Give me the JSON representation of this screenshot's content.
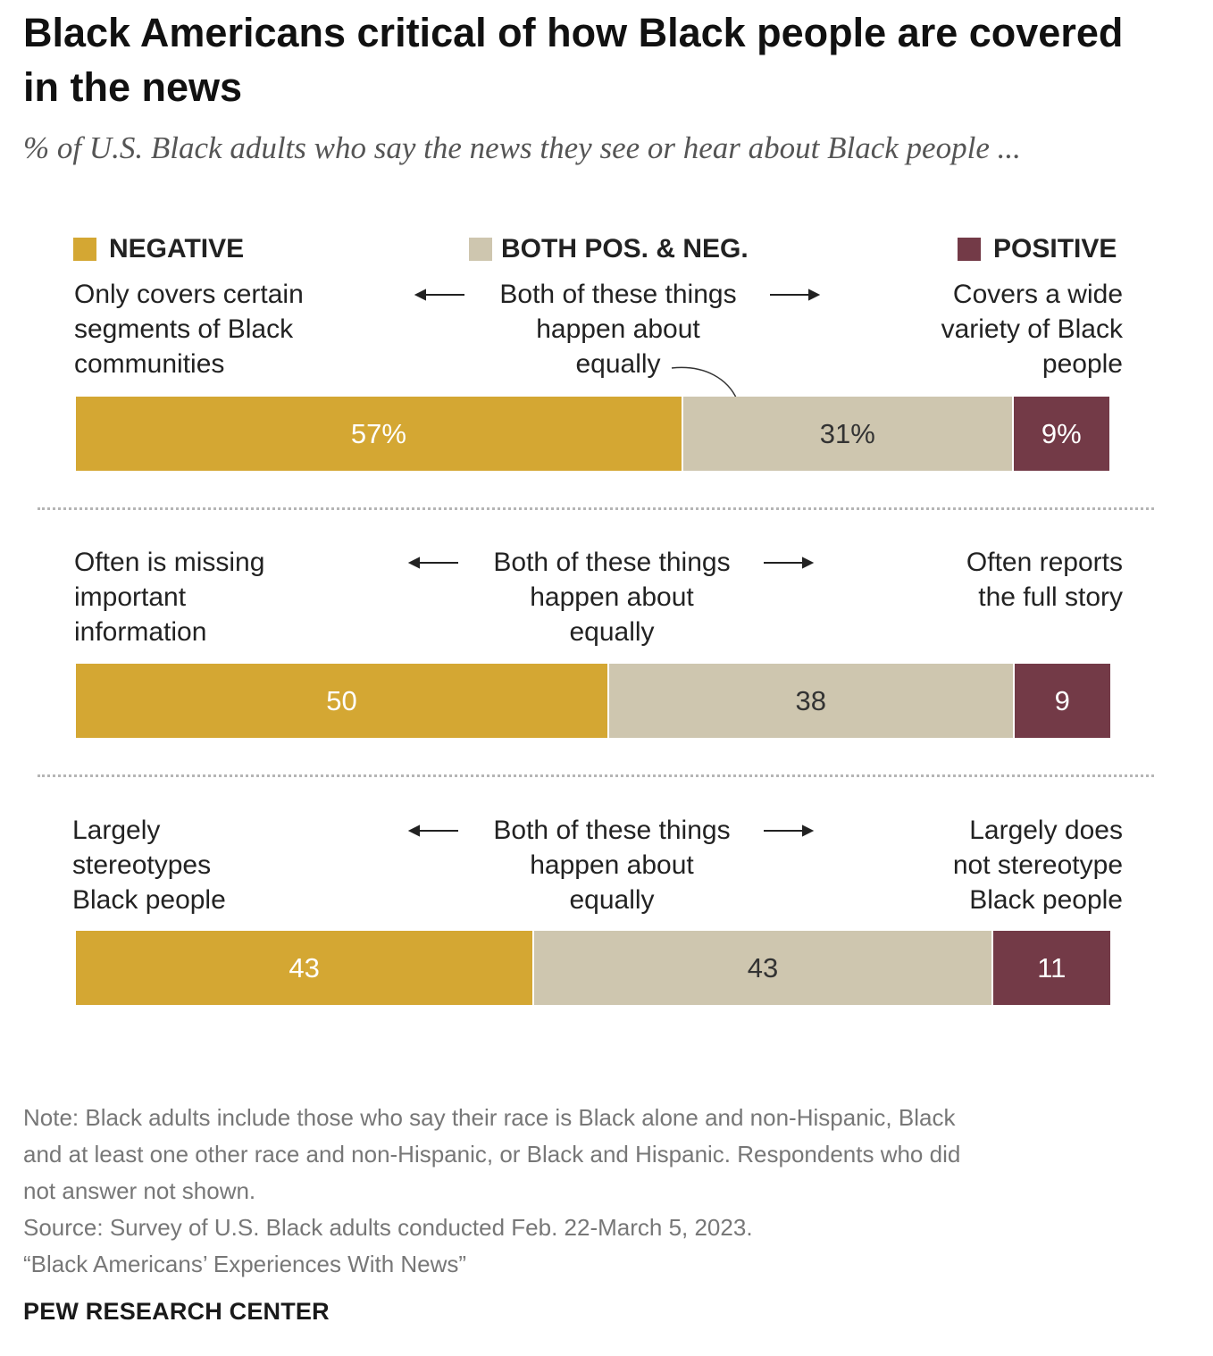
{
  "chart_data": {
    "type": "bar",
    "orientation": "horizontal",
    "stacked": true,
    "title": "Black Americans critical of how Black people are covered in the news",
    "subtitle": "% of U.S. Black adults who say the news they see or hear about Black people ...",
    "legend": [
      {
        "key": "negative",
        "label": "NEGATIVE",
        "color": "#d4a733"
      },
      {
        "key": "both",
        "label": "BOTH POS. & NEG.",
        "color": "#cec6af"
      },
      {
        "key": "positive",
        "label": "POSITIVE",
        "color": "#733a47"
      }
    ],
    "legend_placement": "top",
    "rows": [
      {
        "negative_label": "Only covers certain segments of Black communities",
        "both_label": "Both of these things happen about equally",
        "positive_label": "Covers a wide variety of Black people",
        "values": {
          "negative": 57,
          "both": 31,
          "positive": 9
        },
        "value_labels": {
          "negative": "57%",
          "both": "31%",
          "positive": "9%"
        }
      },
      {
        "negative_label": "Often is missing important information",
        "both_label": "Both of these things happen about equally",
        "positive_label": "Often reports the full story",
        "values": {
          "negative": 50,
          "both": 38,
          "positive": 9
        },
        "value_labels": {
          "negative": "50",
          "both": "38",
          "positive": "9"
        }
      },
      {
        "negative_label": "Largely stereotypes Black people",
        "both_label": "Both of these things happen about equally",
        "positive_label": "Largely does not stereotype Black people",
        "values": {
          "negative": 43,
          "both": 43,
          "positive": 11
        },
        "value_labels": {
          "negative": "43",
          "both": "43",
          "positive": "11"
        }
      }
    ]
  },
  "text": {
    "title": "Black Americans critical of how Black people are covered in the news",
    "subtitle": "% of U.S. Black adults who say the news they see or hear about Black people ...",
    "legend_negative": "NEGATIVE",
    "legend_both": "BOTH POS. & NEG.",
    "legend_positive": "POSITIVE",
    "row1_neg_l1": "Only covers certain",
    "row1_neg_l2": "segments of Black",
    "row1_neg_l3": "communities",
    "row1_both_l1": "Both of these things",
    "row1_both_l2": "happen about",
    "row1_both_l3": "equally",
    "row1_pos_l1": "Covers a wide",
    "row1_pos_l2": "variety of Black",
    "row1_pos_l3": "people",
    "row2_neg_l1": "Often is missing",
    "row2_neg_l2": "important",
    "row2_neg_l3": "information",
    "row2_both_l1": "Both of these things",
    "row2_both_l2": "happen about",
    "row2_both_l3": "equally",
    "row2_pos_l1": "Often reports",
    "row2_pos_l2": "the full story",
    "row3_neg_l1": "Largely",
    "row3_neg_l2": "stereotypes",
    "row3_neg_l3": "Black people",
    "row3_both_l1": "Both of these things",
    "row3_both_l2": "happen about",
    "row3_both_l3": "equally",
    "row3_pos_l1": "Largely does",
    "row3_pos_l2": "not stereotype",
    "row3_pos_l3": "Black people",
    "note_l1": "Note: Black adults include those who say their race is Black alone and non-Hispanic, Black",
    "note_l2": "and at least one other race and non-Hispanic, or Black and Hispanic. Respondents who did",
    "note_l3": "not answer not shown.",
    "source": "Source: Survey of U.S. Black adults conducted Feb. 22-March 5, 2023.",
    "report": "“Black Americans’ Experiences With News”",
    "brand": "PEW RESEARCH CENTER"
  }
}
